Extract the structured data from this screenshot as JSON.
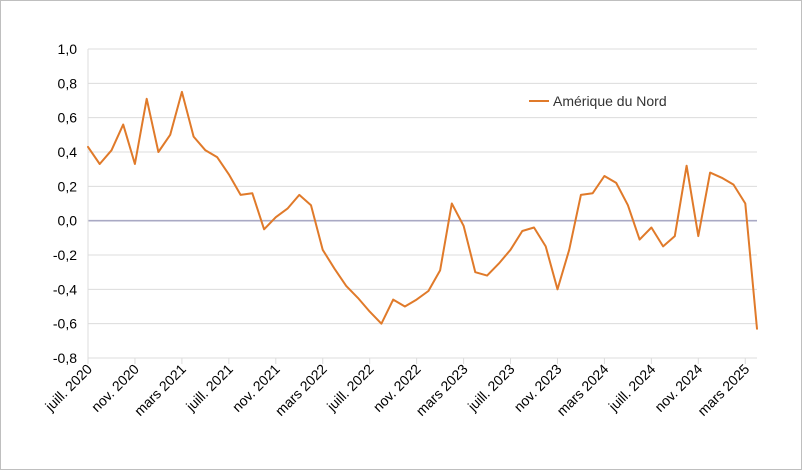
{
  "chart_data": {
    "type": "line",
    "title": "",
    "xlabel": "",
    "ylabel": "",
    "ylim": [
      -0.8,
      1.0
    ],
    "yticks": [
      "1,0",
      "0,8",
      "0,6",
      "0,4",
      "0,2",
      "0,0",
      "-0,2",
      "-0,4",
      "-0,6",
      "-0,8"
    ],
    "ytick_values": [
      1.0,
      0.8,
      0.6,
      0.4,
      0.2,
      0.0,
      -0.2,
      -0.4,
      -0.6,
      -0.8
    ],
    "xtick_labels": [
      "juill. 2020",
      "nov. 2020",
      "mars 2021",
      "juill. 2021",
      "nov. 2021",
      "mars 2022",
      "juill. 2022",
      "nov. 2022",
      "mars 2023",
      "juill. 2023",
      "nov. 2023",
      "mars 2024",
      "juill. 2024",
      "nov. 2024",
      "mars 2025"
    ],
    "xtick_months": [
      "2020-07",
      "2020-11",
      "2021-03",
      "2021-07",
      "2021-11",
      "2022-03",
      "2022-07",
      "2022-11",
      "2023-03",
      "2023-07",
      "2023-11",
      "2024-03",
      "2024-07",
      "2024-11",
      "2025-03"
    ],
    "grid": true,
    "legend": "top-right",
    "series": [
      {
        "name": "Amérique du Nord",
        "color": "#e07a2a",
        "x": [
          "2020-07",
          "2020-08",
          "2020-09",
          "2020-10",
          "2020-11",
          "2020-12",
          "2021-01",
          "2021-02",
          "2021-03",
          "2021-04",
          "2021-05",
          "2021-06",
          "2021-07",
          "2021-08",
          "2021-09",
          "2021-10",
          "2021-11",
          "2021-12",
          "2022-01",
          "2022-02",
          "2022-03",
          "2022-04",
          "2022-05",
          "2022-06",
          "2022-07",
          "2022-08",
          "2022-09",
          "2022-10",
          "2022-11",
          "2022-12",
          "2023-01",
          "2023-02",
          "2023-03",
          "2023-04",
          "2023-05",
          "2023-06",
          "2023-07",
          "2023-08",
          "2023-09",
          "2023-10",
          "2023-11",
          "2023-12",
          "2024-01",
          "2024-02",
          "2024-03",
          "2024-04",
          "2024-05",
          "2024-06",
          "2024-07",
          "2024-08",
          "2024-09",
          "2024-10",
          "2024-11",
          "2024-12",
          "2025-01",
          "2025-02",
          "2025-03",
          "2025-04"
        ],
        "values": [
          0.43,
          0.33,
          0.41,
          0.56,
          0.33,
          0.71,
          0.4,
          0.5,
          0.75,
          0.49,
          0.41,
          0.37,
          0.27,
          0.15,
          0.16,
          -0.05,
          0.02,
          0.07,
          0.15,
          0.09,
          -0.17,
          -0.28,
          -0.38,
          -0.45,
          -0.53,
          -0.6,
          -0.46,
          -0.5,
          -0.46,
          -0.41,
          -0.29,
          0.1,
          -0.03,
          -0.3,
          -0.32,
          -0.25,
          -0.17,
          -0.06,
          -0.04,
          -0.15,
          -0.4,
          -0.17,
          0.15,
          0.16,
          0.26,
          0.22,
          0.09,
          -0.11,
          -0.04,
          -0.15,
          -0.09,
          0.32,
          -0.09,
          0.28,
          0.25,
          0.21,
          0.1,
          -0.63
        ]
      }
    ]
  }
}
